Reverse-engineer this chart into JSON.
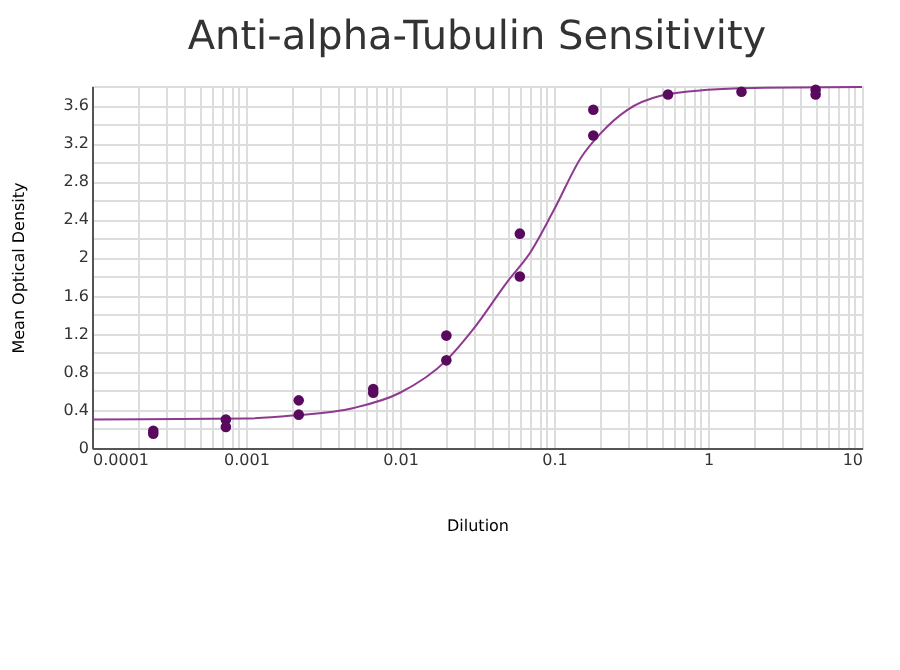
{
  "chart_data": {
    "type": "scatter",
    "title": "Anti-alpha-Tubulin Sensitivity",
    "xlabel": "Dilution",
    "ylabel": "Mean Optical Density",
    "log": "x",
    "grid": true,
    "marker": "circle",
    "xlim": [
      0.0001,
      10
    ],
    "ylim": [
      0,
      3.8
    ],
    "xticks": [
      {
        "value": 0.0001,
        "label": "0.0001"
      },
      {
        "value": 0.0002,
        "label": null
      },
      {
        "value": 0.0003,
        "label": null
      },
      {
        "value": 0.0004,
        "label": null
      },
      {
        "value": 0.0005,
        "label": null
      },
      {
        "value": 0.0006,
        "label": null
      },
      {
        "value": 0.0007,
        "label": null
      },
      {
        "value": 0.0008,
        "label": null
      },
      {
        "value": 0.0009,
        "label": null
      },
      {
        "value": 0.001,
        "label": "0.001"
      },
      {
        "value": 0.002,
        "label": null
      },
      {
        "value": 0.003,
        "label": null
      },
      {
        "value": 0.004,
        "label": null
      },
      {
        "value": 0.005,
        "label": null
      },
      {
        "value": 0.006,
        "label": null
      },
      {
        "value": 0.007,
        "label": null
      },
      {
        "value": 0.008,
        "label": null
      },
      {
        "value": 0.009,
        "label": null
      },
      {
        "value": 0.01,
        "label": "0.01"
      },
      {
        "value": 0.02,
        "label": null
      },
      {
        "value": 0.03,
        "label": null
      },
      {
        "value": 0.04,
        "label": null
      },
      {
        "value": 0.05,
        "label": null
      },
      {
        "value": 0.06,
        "label": null
      },
      {
        "value": 0.07,
        "label": null
      },
      {
        "value": 0.08,
        "label": null
      },
      {
        "value": 0.09,
        "label": null
      },
      {
        "value": 0.1,
        "label": "0.1"
      },
      {
        "value": 0.2,
        "label": null
      },
      {
        "value": 0.3,
        "label": null
      },
      {
        "value": 0.4,
        "label": null
      },
      {
        "value": 0.5,
        "label": null
      },
      {
        "value": 0.6,
        "label": null
      },
      {
        "value": 0.7,
        "label": null
      },
      {
        "value": 0.8,
        "label": null
      },
      {
        "value": 0.9,
        "label": null
      },
      1,
      {
        "value": 2,
        "label": null
      },
      {
        "value": 3,
        "label": null
      },
      {
        "value": 4,
        "label": null
      },
      {
        "value": 5,
        "label": null
      },
      {
        "value": 6,
        "label": null
      },
      {
        "value": 7,
        "label": null
      },
      {
        "value": 8,
        "label": null
      },
      {
        "value": 9,
        "label": null
      },
      10
    ],
    "yticks": [
      0,
      {
        "value": 0.2,
        "label": null
      },
      0.4,
      {
        "value": 0.6,
        "label": null
      },
      0.8,
      {
        "value": 1.0,
        "label": null
      },
      1.2,
      {
        "value": 1.4,
        "label": null
      },
      1.6,
      {
        "value": 1.8,
        "label": null
      },
      2,
      {
        "value": 2.2,
        "label": null
      },
      2.4,
      {
        "value": 2.6,
        "label": null
      },
      2.8,
      {
        "value": 3.0,
        "label": null
      },
      3.2,
      {
        "value": 3.4,
        "label": null
      },
      3.6
    ],
    "series": [
      {
        "type": "line",
        "color": "#8e3a8e",
        "marker": "none",
        "x": [
          0.0001,
          0.001,
          0.002,
          0.005,
          0.01,
          0.02,
          0.03,
          0.05,
          0.07,
          0.1,
          0.15,
          0.2,
          0.3,
          0.5,
          1,
          2,
          10
        ],
        "values": [
          0.3,
          0.31,
          0.34,
          0.42,
          0.58,
          0.92,
          1.25,
          1.75,
          2.05,
          2.5,
          3.05,
          3.3,
          3.55,
          3.7,
          3.76,
          3.78,
          3.79
        ]
      },
      {
        "color": "#5a0a5e",
        "x": [
          0.00025,
          0.00025,
          0.00074,
          0.00074,
          0.0022,
          0.0022,
          0.0067,
          0.0067,
          0.02,
          0.02,
          0.06,
          0.06,
          0.18,
          0.18,
          0.55,
          1.65,
          5,
          5
        ],
        "values": [
          0.18,
          0.15,
          0.3,
          0.22,
          0.5,
          0.35,
          0.62,
          0.58,
          1.18,
          0.92,
          2.25,
          1.8,
          3.55,
          3.28,
          3.71,
          3.74,
          3.76,
          3.71
        ]
      }
    ]
  }
}
